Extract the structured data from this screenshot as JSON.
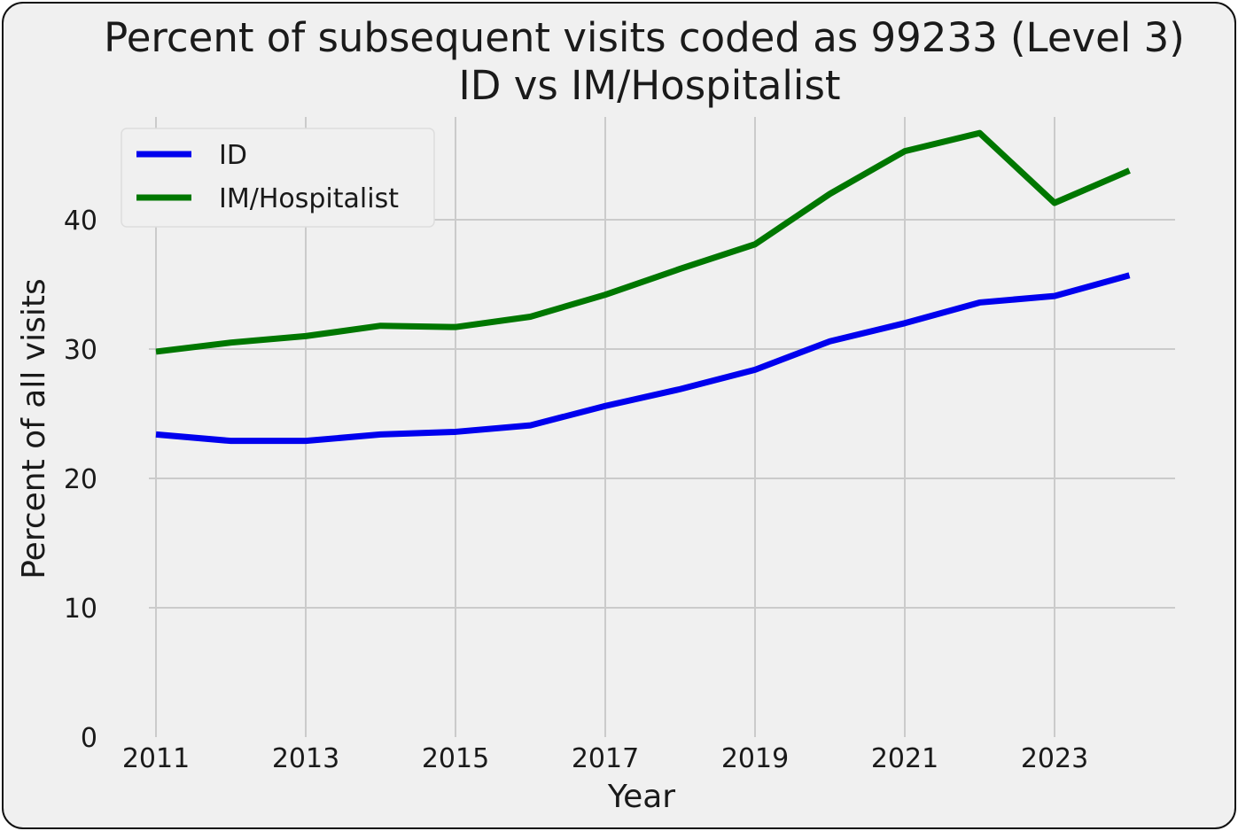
{
  "chart_data": {
    "type": "line",
    "title": "Percent of subsequent visits coded as 99233 (Level 3)",
    "subtitle": "ID vs IM/Hospitalist",
    "xlabel": "Year",
    "ylabel": "Percent of all visits",
    "x": [
      2011,
      2012,
      2013,
      2014,
      2015,
      2016,
      2017,
      2018,
      2019,
      2020,
      2021,
      2022,
      2023,
      2024
    ],
    "x_ticks": [
      "2011",
      "2013",
      "2015",
      "2017",
      "2019",
      "2021",
      "2023"
    ],
    "y_ticks": [
      "0",
      "10",
      "20",
      "30",
      "40"
    ],
    "xlim": [
      2010.7,
      2024.6
    ],
    "ylim": [
      0,
      48
    ],
    "grid": true,
    "legend_position": "upper-left",
    "series": [
      {
        "name": "ID",
        "color": "#0000ee",
        "values": [
          23.4,
          22.9,
          22.9,
          23.4,
          23.6,
          24.1,
          25.6,
          26.9,
          28.4,
          30.6,
          32.0,
          33.6,
          34.1,
          35.7
        ]
      },
      {
        "name": "IM/Hospitalist",
        "color": "#007700",
        "values": [
          29.8,
          30.5,
          31.0,
          31.8,
          31.7,
          32.5,
          34.2,
          36.2,
          38.1,
          42.0,
          45.3,
          46.7,
          41.3,
          43.8
        ]
      }
    ]
  }
}
